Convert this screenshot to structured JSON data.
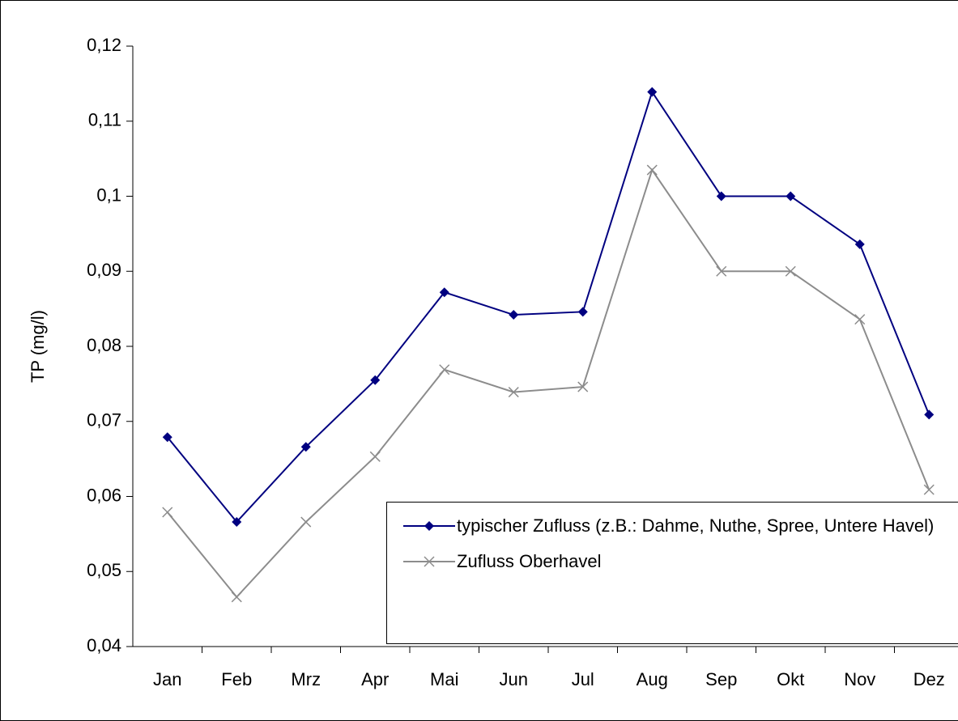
{
  "chart_data": {
    "type": "line",
    "y_label": "TP (mg/l)",
    "categories": [
      "Jan",
      "Feb",
      "Mrz",
      "Apr",
      "Mai",
      "Jun",
      "Jul",
      "Aug",
      "Sep",
      "Okt",
      "Nov",
      "Dez"
    ],
    "series": [
      {
        "name": "typischer Zufluss (z.B.: Dahme, Nuthe, Spree, Untere Havel)",
        "color": "#000080",
        "marker": "diamond",
        "values": [
          0.0679,
          0.0566,
          0.0666,
          0.0755,
          0.0872,
          0.0842,
          0.0846,
          0.1139,
          0.1,
          0.1,
          0.0936,
          0.0709
        ]
      },
      {
        "name": "Zufluss Oberhavel",
        "color": "#8c8c8c",
        "marker": "x",
        "values": [
          0.0579,
          0.0466,
          0.0566,
          0.0653,
          0.0769,
          0.0739,
          0.0746,
          0.1035,
          0.09,
          0.09,
          0.0836,
          0.0609
        ]
      }
    ],
    "ylim": [
      0.04,
      0.12
    ],
    "yticks": [
      {
        "value": 0.04,
        "label": "0,04"
      },
      {
        "value": 0.05,
        "label": "0,05"
      },
      {
        "value": 0.06,
        "label": "0,06"
      },
      {
        "value": 0.07,
        "label": "0,07"
      },
      {
        "value": 0.08,
        "label": "0,08"
      },
      {
        "value": 0.09,
        "label": "0,09"
      },
      {
        "value": 0.1,
        "label": "0,1"
      },
      {
        "value": 0.11,
        "label": "0,11"
      },
      {
        "value": 0.12,
        "label": "0,12"
      }
    ],
    "grid": false
  }
}
